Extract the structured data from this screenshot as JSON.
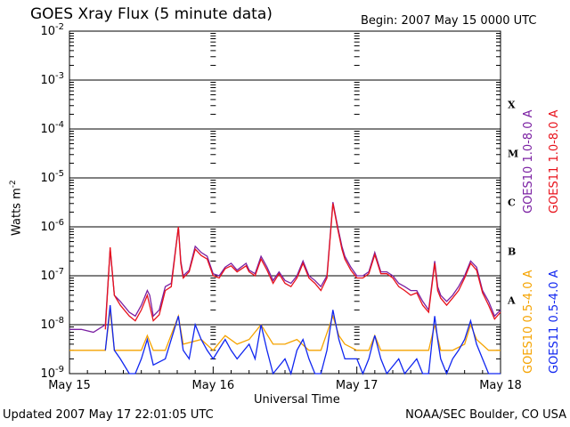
{
  "header": {
    "title": "GOES Xray Flux (5 minute data)",
    "begin": "Begin:  2007 May 15 0000 UTC"
  },
  "footer": {
    "updated": "Updated 2007 May 17 22:01:05 UTC",
    "credit": "NOAA/SEC Boulder, CO USA"
  },
  "colors": {
    "goes10_long": "#7a1fa2",
    "goes11_long": "#e8121b",
    "goes10_short": "#f5a300",
    "goes11_short": "#1026f0"
  },
  "chart_data": {
    "type": "line",
    "title": "GOES Xray Flux (5 minute data)",
    "xlabel": "Universal Time",
    "ylabel": "Watts m",
    "ylabel_sup": "-2",
    "yscale": "log",
    "ylim": [
      1e-09,
      0.01
    ],
    "xlim": [
      0,
      72
    ],
    "x_unit": "hours since 2007 May 15 0000 UTC",
    "grid": true,
    "x_ticks": [
      {
        "x": 0,
        "label": "May 15"
      },
      {
        "x": 24,
        "label": "May 16"
      },
      {
        "x": 48,
        "label": "May 17"
      },
      {
        "x": 72,
        "label": "May 18"
      }
    ],
    "y_ticks": [
      {
        "exp": -9,
        "base": "10",
        "sup": "-9"
      },
      {
        "exp": -8,
        "base": "10",
        "sup": "-8"
      },
      {
        "exp": -7,
        "base": "10",
        "sup": "-7"
      },
      {
        "exp": -6,
        "base": "10",
        "sup": "-6"
      },
      {
        "exp": -5,
        "base": "10",
        "sup": "-5"
      },
      {
        "exp": -4,
        "base": "10",
        "sup": "-4"
      },
      {
        "exp": -3,
        "base": "10",
        "sup": "-3"
      },
      {
        "exp": -2,
        "base": "10",
        "sup": "-2"
      }
    ],
    "flare_classes": [
      {
        "label": "A",
        "exp": -7.5
      },
      {
        "label": "B",
        "exp": -6.5
      },
      {
        "label": "C",
        "exp": -5.5
      },
      {
        "label": "M",
        "exp": -4.5
      },
      {
        "label": "X",
        "exp": -3.5
      }
    ],
    "legend": {
      "placement": "right",
      "items": [
        {
          "label": "GOES10 1.0-8.0 A",
          "color_key": "goes10_long"
        },
        {
          "label": "GOES11 1.0-8.0 A",
          "color_key": "goes11_long"
        },
        {
          "label": "GOES10 0.5-4.0 A",
          "color_key": "goes10_short"
        },
        {
          "label": "GOES11 0.5-4.0 A",
          "color_key": "goes11_short"
        }
      ]
    },
    "series": [
      {
        "name": "GOES10 1.0-8.0 A",
        "color_key": "goes10_long",
        "points": [
          [
            0,
            8e-09
          ],
          [
            2,
            8e-09
          ],
          [
            4,
            7e-09
          ],
          [
            6,
            1e-08
          ],
          [
            6.8,
            3.5e-07
          ],
          [
            7.5,
            4e-08
          ],
          [
            8.5,
            3e-08
          ],
          [
            10,
            1.8e-08
          ],
          [
            11,
            1.5e-08
          ],
          [
            12,
            2.5e-08
          ],
          [
            13,
            5e-08
          ],
          [
            13.4,
            4e-08
          ],
          [
            14,
            1.5e-08
          ],
          [
            15,
            2e-08
          ],
          [
            16,
            6e-08
          ],
          [
            17,
            7e-08
          ],
          [
            18.2,
            1e-06
          ],
          [
            18.6,
            2e-07
          ],
          [
            19,
            1e-07
          ],
          [
            20,
            1.3e-07
          ],
          [
            21,
            4e-07
          ],
          [
            22,
            3e-07
          ],
          [
            23,
            2.5e-07
          ],
          [
            24,
            1.1e-07
          ],
          [
            25,
            1e-07
          ],
          [
            26,
            1.5e-07
          ],
          [
            27,
            1.8e-07
          ],
          [
            28,
            1.3e-07
          ],
          [
            29.5,
            1.8e-07
          ],
          [
            30,
            1.3e-07
          ],
          [
            31,
            1.1e-07
          ],
          [
            32,
            2.5e-07
          ],
          [
            33,
            1.5e-07
          ],
          [
            34,
            8e-08
          ],
          [
            35,
            1.2e-07
          ],
          [
            36,
            8e-08
          ],
          [
            37,
            7e-08
          ],
          [
            38,
            1e-07
          ],
          [
            39,
            2e-07
          ],
          [
            40,
            1e-07
          ],
          [
            41,
            8e-08
          ],
          [
            42,
            6e-08
          ],
          [
            43,
            1e-07
          ],
          [
            44,
            3.2e-06
          ],
          [
            44.8,
            1e-06
          ],
          [
            45.5,
            4e-07
          ],
          [
            46,
            2.5e-07
          ],
          [
            47,
            1.5e-07
          ],
          [
            48,
            1e-07
          ],
          [
            49,
            1e-07
          ],
          [
            50,
            1.2e-07
          ],
          [
            51,
            3e-07
          ],
          [
            52,
            1.2e-07
          ],
          [
            53,
            1.2e-07
          ],
          [
            54,
            1e-07
          ],
          [
            55,
            7e-08
          ],
          [
            56,
            6e-08
          ],
          [
            57,
            5e-08
          ],
          [
            58,
            5e-08
          ],
          [
            59,
            3e-08
          ],
          [
            60,
            2e-08
          ],
          [
            61,
            2e-07
          ],
          [
            61.5,
            6e-08
          ],
          [
            62,
            4e-08
          ],
          [
            63,
            3e-08
          ],
          [
            64,
            4e-08
          ],
          [
            65,
            6e-08
          ],
          [
            66,
            1e-07
          ],
          [
            67,
            2e-07
          ],
          [
            68,
            1.5e-07
          ],
          [
            69,
            5e-08
          ],
          [
            70,
            3e-08
          ],
          [
            71,
            1.5e-08
          ],
          [
            72,
            2e-08
          ]
        ]
      },
      {
        "name": "GOES11 1.0-8.0 A",
        "color_key": "goes11_long",
        "points": [
          [
            6,
            8e-09
          ],
          [
            6.8,
            3.8e-07
          ],
          [
            7.5,
            4e-08
          ],
          [
            8.5,
            2.5e-08
          ],
          [
            10,
            1.5e-08
          ],
          [
            11,
            1.2e-08
          ],
          [
            12,
            2e-08
          ],
          [
            13,
            4e-08
          ],
          [
            14,
            1.2e-08
          ],
          [
            15,
            1.6e-08
          ],
          [
            16,
            5e-08
          ],
          [
            17,
            6e-08
          ],
          [
            18.2,
            1e-06
          ],
          [
            18.6,
            1.8e-07
          ],
          [
            19,
            9e-08
          ],
          [
            20,
            1.2e-07
          ],
          [
            21,
            3.5e-07
          ],
          [
            22,
            2.6e-07
          ],
          [
            23,
            2.2e-07
          ],
          [
            24,
            1e-07
          ],
          [
            25,
            9e-08
          ],
          [
            26,
            1.4e-07
          ],
          [
            27,
            1.6e-07
          ],
          [
            28,
            1.2e-07
          ],
          [
            29.5,
            1.6e-07
          ],
          [
            30,
            1.2e-07
          ],
          [
            31,
            1e-07
          ],
          [
            32,
            2.2e-07
          ],
          [
            33,
            1.3e-07
          ],
          [
            34,
            7e-08
          ],
          [
            35,
            1.1e-07
          ],
          [
            36,
            7e-08
          ],
          [
            37,
            6e-08
          ],
          [
            38,
            9e-08
          ],
          [
            39,
            1.8e-07
          ],
          [
            40,
            9e-08
          ],
          [
            41,
            7e-08
          ],
          [
            42,
            5e-08
          ],
          [
            43,
            9e-08
          ],
          [
            44,
            3e-06
          ],
          [
            44.8,
            9e-07
          ],
          [
            45.5,
            3.5e-07
          ],
          [
            46,
            2.2e-07
          ],
          [
            47,
            1.3e-07
          ],
          [
            48,
            9e-08
          ],
          [
            49,
            9e-08
          ],
          [
            50,
            1.1e-07
          ],
          [
            51,
            2.7e-07
          ],
          [
            52,
            1.1e-07
          ],
          [
            53,
            1.1e-07
          ],
          [
            54,
            9e-08
          ],
          [
            55,
            6e-08
          ],
          [
            56,
            5e-08
          ],
          [
            57,
            4e-08
          ],
          [
            58,
            4.5e-08
          ],
          [
            59,
            2.5e-08
          ],
          [
            60,
            1.8e-08
          ],
          [
            61,
            1.8e-07
          ],
          [
            61.5,
            5e-08
          ],
          [
            62,
            3.5e-08
          ],
          [
            63,
            2.5e-08
          ],
          [
            64,
            3.5e-08
          ],
          [
            65,
            5e-08
          ],
          [
            66,
            9e-08
          ],
          [
            67,
            1.8e-07
          ],
          [
            68,
            1.3e-07
          ],
          [
            69,
            4.5e-08
          ],
          [
            70,
            2.5e-08
          ],
          [
            71,
            1.3e-08
          ],
          [
            72,
            1.8e-08
          ]
        ]
      },
      {
        "name": "GOES10 0.5-4.0 A",
        "color_key": "goes10_short",
        "points": [
          [
            0,
            3e-09
          ],
          [
            4,
            3e-09
          ],
          [
            6,
            3e-09
          ],
          [
            6.8,
            2e-08
          ],
          [
            7.5,
            3e-09
          ],
          [
            10,
            3e-09
          ],
          [
            12,
            3e-09
          ],
          [
            13,
            6e-09
          ],
          [
            14,
            3e-09
          ],
          [
            16,
            3e-09
          ],
          [
            18.2,
            1.5e-08
          ],
          [
            19,
            4e-09
          ],
          [
            22,
            5e-09
          ],
          [
            24,
            3e-09
          ],
          [
            26,
            6e-09
          ],
          [
            28,
            4e-09
          ],
          [
            30,
            5e-09
          ],
          [
            32,
            1e-08
          ],
          [
            34,
            4e-09
          ],
          [
            36,
            4e-09
          ],
          [
            38,
            5e-09
          ],
          [
            40,
            3e-09
          ],
          [
            42,
            3e-09
          ],
          [
            44,
            1.5e-08
          ],
          [
            45,
            6e-09
          ],
          [
            46,
            4e-09
          ],
          [
            48,
            3e-09
          ],
          [
            50,
            3e-09
          ],
          [
            51,
            6e-09
          ],
          [
            52,
            3e-09
          ],
          [
            55,
            3e-09
          ],
          [
            58,
            3e-09
          ],
          [
            60,
            3e-09
          ],
          [
            61,
            1e-08
          ],
          [
            62,
            3e-09
          ],
          [
            64,
            3e-09
          ],
          [
            66,
            4e-09
          ],
          [
            67,
            1e-08
          ],
          [
            68,
            5e-09
          ],
          [
            70,
            3e-09
          ],
          [
            72,
            3e-09
          ]
        ]
      },
      {
        "name": "GOES11 0.5-4.0 A",
        "color_key": "goes11_short",
        "points": [
          [
            6,
            3e-09
          ],
          [
            6.8,
            2.5e-08
          ],
          [
            7.5,
            3e-09
          ],
          [
            8.5,
            2e-09
          ],
          [
            10,
            1e-09
          ],
          [
            11,
            1e-09
          ],
          [
            12,
            2e-09
          ],
          [
            13,
            5e-09
          ],
          [
            14,
            1.5e-09
          ],
          [
            16,
            2e-09
          ],
          [
            18.2,
            1.5e-08
          ],
          [
            19,
            3e-09
          ],
          [
            20,
            2e-09
          ],
          [
            21,
            1e-08
          ],
          [
            22,
            5e-09
          ],
          [
            23,
            3e-09
          ],
          [
            24,
            2e-09
          ],
          [
            26,
            5e-09
          ],
          [
            27,
            3e-09
          ],
          [
            28,
            2e-09
          ],
          [
            30,
            4e-09
          ],
          [
            31,
            2e-09
          ],
          [
            32,
            1e-08
          ],
          [
            33,
            3e-09
          ],
          [
            34,
            1e-09
          ],
          [
            36,
            2e-09
          ],
          [
            37,
            1e-09
          ],
          [
            38,
            3e-09
          ],
          [
            39,
            5e-09
          ],
          [
            40,
            2e-09
          ],
          [
            41,
            1e-09
          ],
          [
            42,
            1e-09
          ],
          [
            43,
            3e-09
          ],
          [
            44,
            2e-08
          ],
          [
            45,
            5e-09
          ],
          [
            46,
            2e-09
          ],
          [
            48,
            2e-09
          ],
          [
            49,
            1e-09
          ],
          [
            50,
            2e-09
          ],
          [
            51,
            6e-09
          ],
          [
            52,
            2e-09
          ],
          [
            53,
            1e-09
          ],
          [
            55,
            2e-09
          ],
          [
            56,
            1e-09
          ],
          [
            58,
            2e-09
          ],
          [
            59,
            1e-09
          ],
          [
            60,
            1e-09
          ],
          [
            61,
            1.5e-08
          ],
          [
            61.5,
            5e-09
          ],
          [
            62,
            2e-09
          ],
          [
            63,
            1e-09
          ],
          [
            64,
            2e-09
          ],
          [
            65,
            3e-09
          ],
          [
            66,
            5e-09
          ],
          [
            67,
            1.2e-08
          ],
          [
            68,
            4e-09
          ],
          [
            69,
            2e-09
          ],
          [
            70,
            1e-09
          ],
          [
            71,
            1e-09
          ],
          [
            72,
            1e-09
          ]
        ]
      }
    ]
  }
}
